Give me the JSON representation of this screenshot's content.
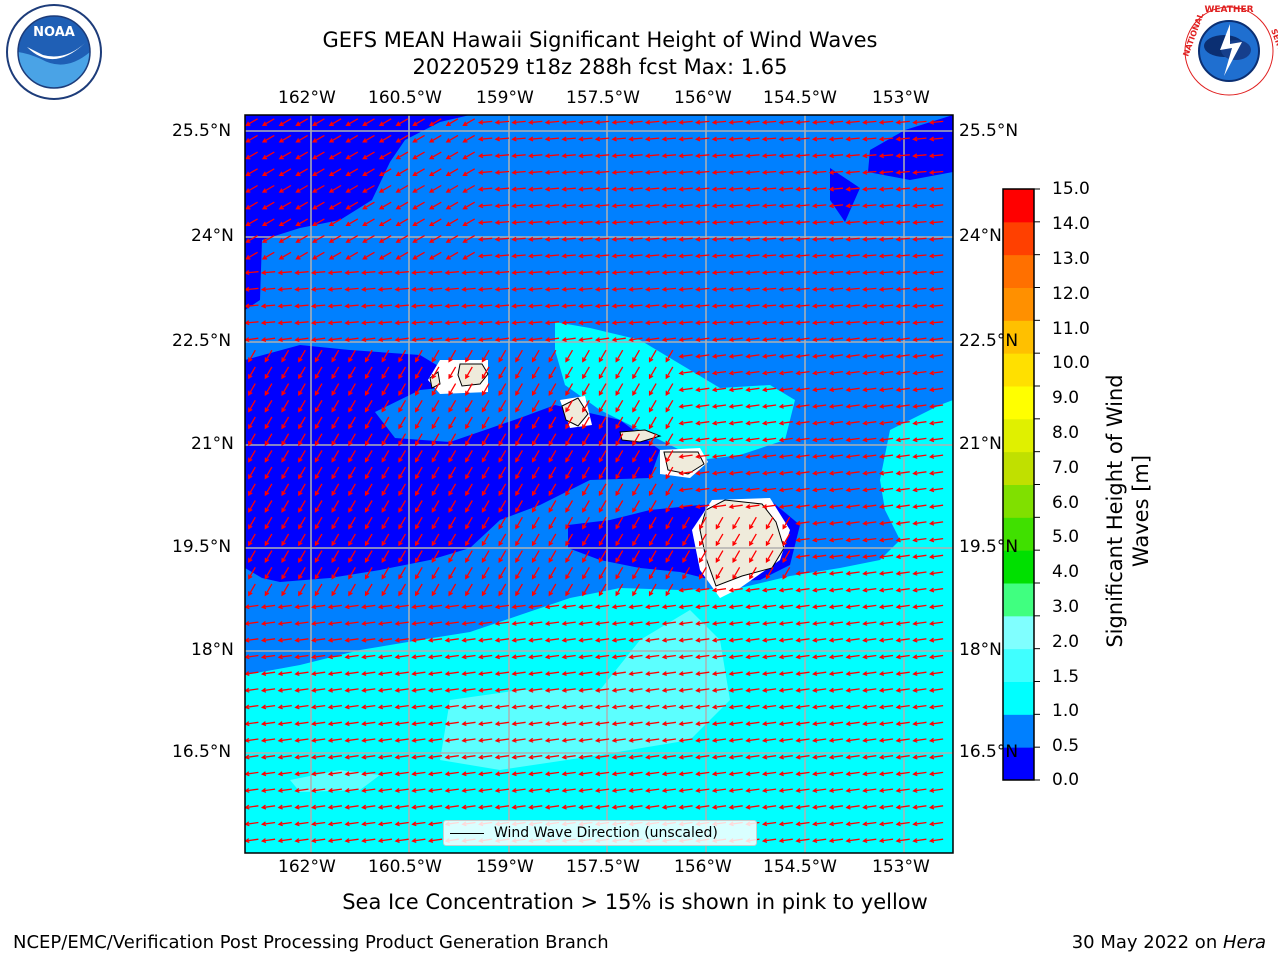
{
  "title": {
    "line1": "GEFS MEAN Hawaii Significant Height of Wind Waves",
    "line2": "20220529 t18z 288h fcst   Max: 1.65"
  },
  "logos": {
    "left": "NOAA",
    "right": "NATIONAL WEATHER SERVICE"
  },
  "map": {
    "lon_labels": [
      "162°W",
      "160.5°W",
      "159°W",
      "157.5°W",
      "156°W",
      "154.5°W",
      "153°W"
    ],
    "lat_labels": [
      "25.5°N",
      "24°N",
      "22.5°N",
      "21°N",
      "19.5°N",
      "18°N",
      "16.5°N"
    ],
    "legend_label": "Wind Wave Direction (unscaled)",
    "colors": {
      "ocean_low": "#0000ff",
      "ocean_mid": "#0080ff",
      "ocean_high": "#00ffff",
      "ocean_highest": "#5cffff",
      "land": "#efebdb",
      "arrow": "#ff0000",
      "grid": "#b0b0b0"
    }
  },
  "colorbar": {
    "title": "Significant Height of Wind Waves [m]",
    "tick_labels": [
      "15.0",
      "14.0",
      "13.0",
      "12.0",
      "11.0",
      "10.0",
      "9.0",
      "8.0",
      "7.0",
      "6.0",
      "5.0",
      "4.0",
      "3.0",
      "2.0",
      "1.5",
      "1.0",
      "0.5",
      "0.0"
    ],
    "colors_bottom_to_top": [
      "#0000ff",
      "#0080ff",
      "#00ffff",
      "#40ffff",
      "#80ffff",
      "#40ff80",
      "#00e000",
      "#40e000",
      "#80e000",
      "#c0e000",
      "#e0f000",
      "#ffff00",
      "#ffe000",
      "#ffc000",
      "#ff9000",
      "#ff7000",
      "#ff4000",
      "#ff0000"
    ]
  },
  "caption": "Sea Ice Concentration > 15% is shown in pink to yellow",
  "footer": {
    "left": "NCEP/EMC/Verification Post Processing Product Generation Branch",
    "right_date": "30 May 2022 on ",
    "right_host": "Hera"
  }
}
